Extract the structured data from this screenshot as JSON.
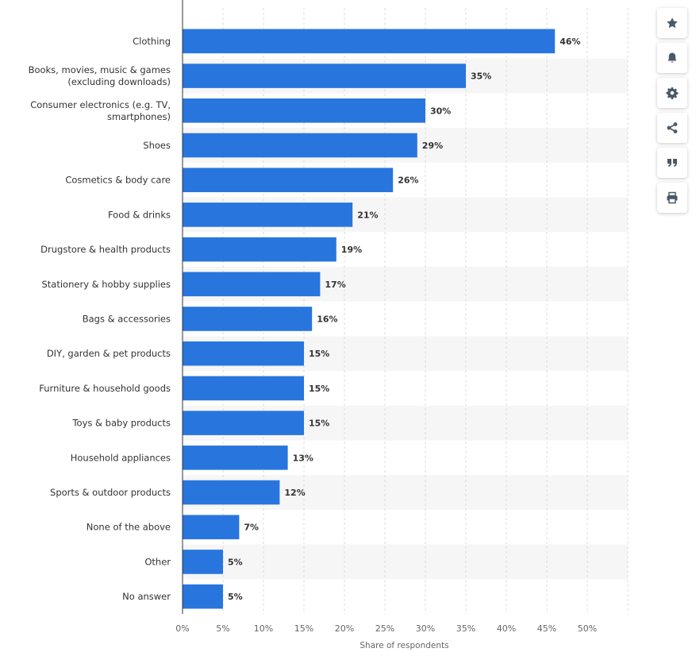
{
  "chart_data": {
    "type": "bar",
    "orientation": "horizontal",
    "categories": [
      "Clothing",
      "Books, movies, music & games\n(excluding downloads)",
      "Consumer electronics (e.g. TV,\nsmartphones)",
      "Shoes",
      "Cosmetics & body care",
      "Food & drinks",
      "Drugstore & health products",
      "Stationery & hobby supplies",
      "Bags & accessories",
      "DIY, garden & pet products",
      "Furniture & household goods",
      "Toys & baby products",
      "Household appliances",
      "Sports & outdoor products",
      "None of the above",
      "Other",
      "No answer"
    ],
    "values": [
      46,
      35,
      30,
      29,
      26,
      21,
      19,
      17,
      16,
      15,
      15,
      15,
      13,
      12,
      7,
      5,
      5
    ],
    "value_labels": [
      "46%",
      "35%",
      "30%",
      "29%",
      "26%",
      "21%",
      "19%",
      "17%",
      "16%",
      "15%",
      "15%",
      "15%",
      "13%",
      "12%",
      "7%",
      "5%",
      "5%"
    ],
    "x_ticks": [
      "0%",
      "5%",
      "10%",
      "15%",
      "20%",
      "25%",
      "30%",
      "35%",
      "40%",
      "45%",
      "50%"
    ],
    "xlim": [
      0,
      55
    ],
    "xlabel": "Share of respondents",
    "ylabel": "",
    "title": "",
    "grid": true,
    "bar_color": "#2876dd",
    "alt_row_color": "#f6f6f6",
    "grid_color": "#dcdcdc"
  },
  "toolbar": {
    "buttons": [
      {
        "name": "favorite-button",
        "icon": "star-icon"
      },
      {
        "name": "notification-button",
        "icon": "bell-icon"
      },
      {
        "name": "settings-button",
        "icon": "gear-icon"
      },
      {
        "name": "share-button",
        "icon": "share-icon"
      },
      {
        "name": "cite-button",
        "icon": "quote-icon"
      },
      {
        "name": "print-button",
        "icon": "print-icon"
      }
    ],
    "icon_color": "#4a5968"
  }
}
